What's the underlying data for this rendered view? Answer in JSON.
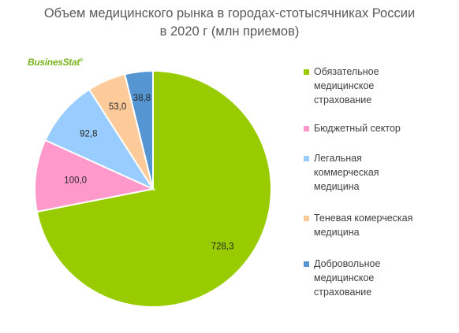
{
  "title_line1": "Объем медицинского рынка в городах-стотысячниках России",
  "title_line2": "в 2020 г (млн приемов)",
  "logo": {
    "text": "BusinesStat",
    "mark": "®"
  },
  "chart_data": {
    "type": "pie",
    "categories": [
      "Обязательное медицинское страхование",
      "Бюджетный сектор",
      "Легальная коммерческая медицина",
      "Теневая комерческая медицина",
      "Добровольное медицинское страхование"
    ],
    "values": [
      728.3,
      100.0,
      92.8,
      53.0,
      38.8
    ],
    "value_labels": [
      "728,3",
      "100,0",
      "92,8",
      "53,0",
      "38,8"
    ],
    "colors": [
      "#99cc00",
      "#ff99cc",
      "#99ccff",
      "#fdcb99",
      "#5596d2"
    ],
    "legend_position": "right",
    "start_angle": "12 o'clock",
    "direction": "clockwise"
  },
  "legend": [
    {
      "label": "Обязательное\nмедицинское\nстрахование"
    },
    {
      "label": "Бюджетный сектор"
    },
    {
      "label": "Легальная\nкоммерческая\nмедицина"
    },
    {
      "label": "Теневая комерческая\nмедицина"
    },
    {
      "label": "Добровольное\nмедицинское\nстрахование"
    }
  ]
}
